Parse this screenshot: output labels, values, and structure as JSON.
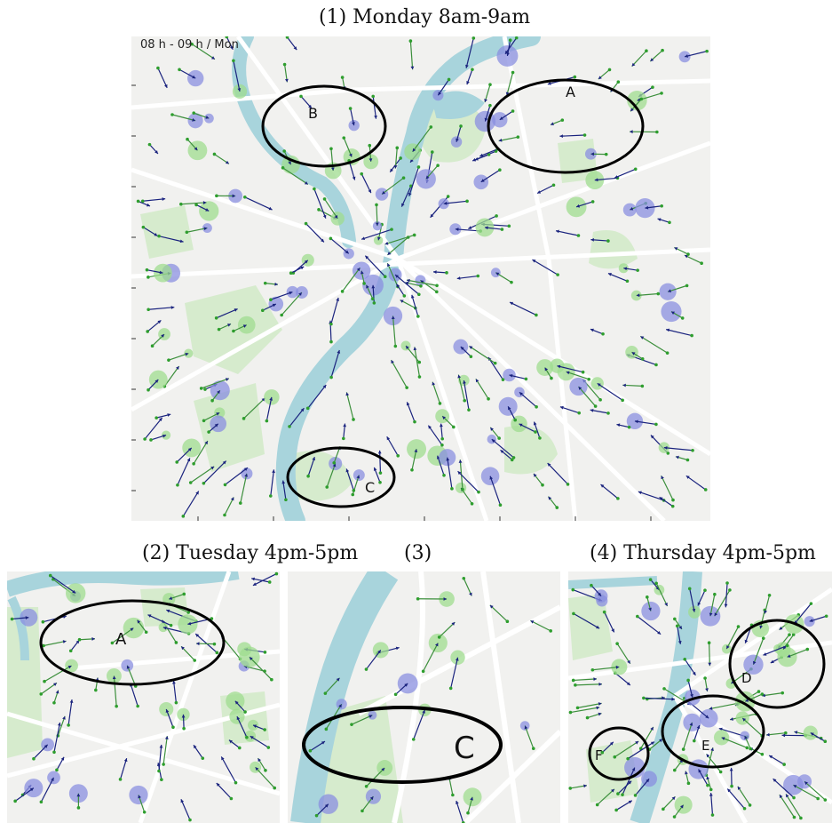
{
  "figure": {
    "panel1": {
      "title": "(1) Monday 8am-9am",
      "time_stamp": "08 h - 09 h / Mon",
      "regions": [
        "A",
        "B",
        "C"
      ]
    },
    "panel2": {
      "title": "(2) Tuesday 4pm-5pm",
      "regions": [
        "A"
      ]
    },
    "panel3": {
      "title": "(3)",
      "regions": [
        "C"
      ]
    },
    "panel4": {
      "title": "(4) Thursday 4pm-5pm",
      "regions": [
        "D",
        "E",
        "F"
      ]
    }
  },
  "colors": {
    "background": "#f1f1ef",
    "river": "#a8d4dc",
    "park": "#d6ebcd",
    "road": "#ffffff",
    "arrow": "#1a237e",
    "origin_dot": "#2e9e2e",
    "station_disc_blue": "#8a8fe0",
    "station_disc_green": "#9fdc8f",
    "region_ellipse": "#000000"
  },
  "legend": {
    "arrow_meaning": "flow direction arrows (dark blue heads)",
    "dot_meaning": "green origin dots"
  }
}
